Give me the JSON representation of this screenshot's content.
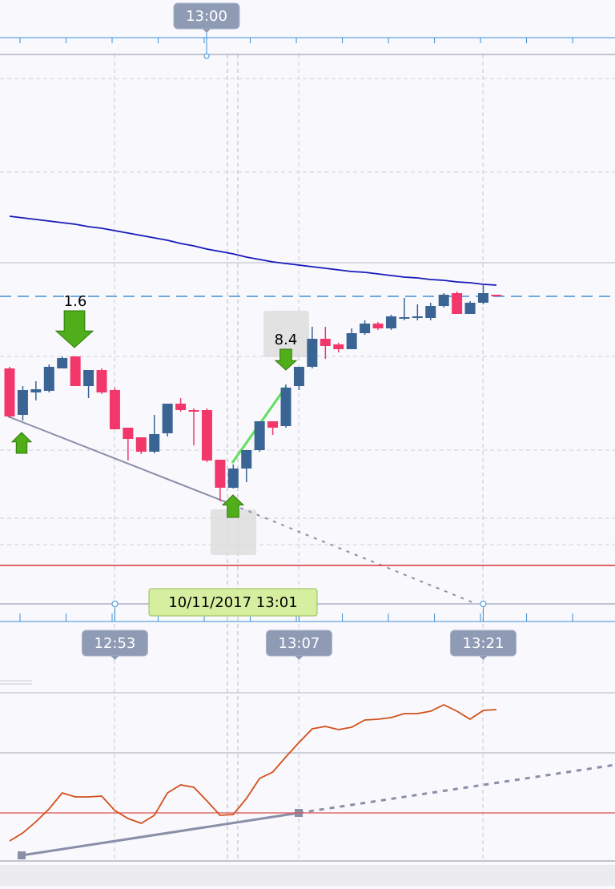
{
  "chart_data": [
    {
      "type": "candlestick",
      "top_label": "13:00",
      "categories": [
        null,
        null,
        null,
        null,
        null,
        null,
        null,
        null,
        "12:53",
        null,
        null,
        null,
        null,
        null,
        null,
        null,
        null,
        null,
        null,
        null,
        null,
        null,
        "13:07",
        null,
        null,
        null,
        null,
        null,
        null,
        null,
        null,
        null,
        null,
        null,
        null,
        null,
        "13:21",
        null
      ],
      "open": [
        320,
        262,
        290,
        292,
        320,
        335,
        298,
        318,
        293,
        246,
        234,
        216,
        239,
        276,
        268,
        268,
        206,
        171,
        195,
        218,
        254,
        248,
        298,
        322,
        357,
        350,
        344,
        364,
        376,
        370,
        382,
        383,
        383,
        398,
        414,
        388,
        402,
        412
      ],
      "high": [
        322,
        298,
        304,
        325,
        335,
        335,
        318,
        320,
        296,
        246,
        234,
        262,
        276,
        283,
        270,
        270,
        206,
        200,
        218,
        254,
        254,
        300,
        322,
        372,
        372,
        352,
        370,
        380,
        378,
        387,
        408,
        400,
        402,
        414,
        416,
        404,
        425,
        412
      ],
      "low": [
        258,
        255,
        280,
        290,
        320,
        298,
        283,
        288,
        244,
        205,
        213,
        214,
        235,
        266,
        224,
        203,
        154,
        170,
        178,
        216,
        237,
        246,
        293,
        320,
        332,
        340,
        344,
        362,
        368,
        368,
        380,
        380,
        380,
        396,
        388,
        388,
        400,
        410
      ],
      "close": [
        260,
        293,
        294,
        322,
        333,
        298,
        318,
        290,
        244,
        232,
        216,
        238,
        276,
        268,
        266,
        205,
        171,
        195,
        218,
        254,
        246,
        296,
        322,
        357,
        348,
        344,
        364,
        376,
        370,
        385,
        384,
        385,
        398,
        412,
        388,
        402,
        414,
        410
      ],
      "up_color": "#3a6494",
      "down_color": "#f2386a",
      "ma": {
        "color": "#1a1ab8",
        "values": [
          510,
          508,
          506,
          504,
          502,
          500,
          497,
          495,
          492,
          489,
          486,
          483,
          480,
          476,
          473,
          469,
          466,
          463,
          459,
          456,
          453,
          451,
          449,
          447,
          445,
          443,
          441,
          440,
          438,
          436,
          434,
          433,
          431,
          430,
          428,
          427,
          425,
          424
        ]
      },
      "levels": [
        {
          "value": 410,
          "color": "#3d8fd6",
          "dashed": true
        },
        {
          "value": 74,
          "color": "#e03030",
          "dashed": false
        }
      ],
      "annotations": [
        {
          "text": "1.6"
        },
        {
          "text": "8.4"
        },
        {
          "text": "10/11/2017 13:01"
        }
      ],
      "ylim": [
        0,
        740
      ]
    },
    {
      "type": "line",
      "values": [
        25,
        35,
        49,
        65,
        85,
        80,
        80,
        81,
        63,
        53,
        47,
        57,
        85,
        95,
        92,
        75,
        57,
        58,
        78,
        103,
        111,
        130,
        148,
        165,
        168,
        164,
        167,
        176,
        177,
        179,
        184,
        184,
        187,
        195,
        187,
        177,
        188,
        189
      ],
      "color": "#d4501a",
      "levels": [
        {
          "value": 135,
          "color": "#b8b8c4",
          "dashed": false
        },
        {
          "value": 60,
          "color": "#e05050",
          "dashed": false
        }
      ],
      "ylim": [
        0,
        210
      ]
    }
  ]
}
